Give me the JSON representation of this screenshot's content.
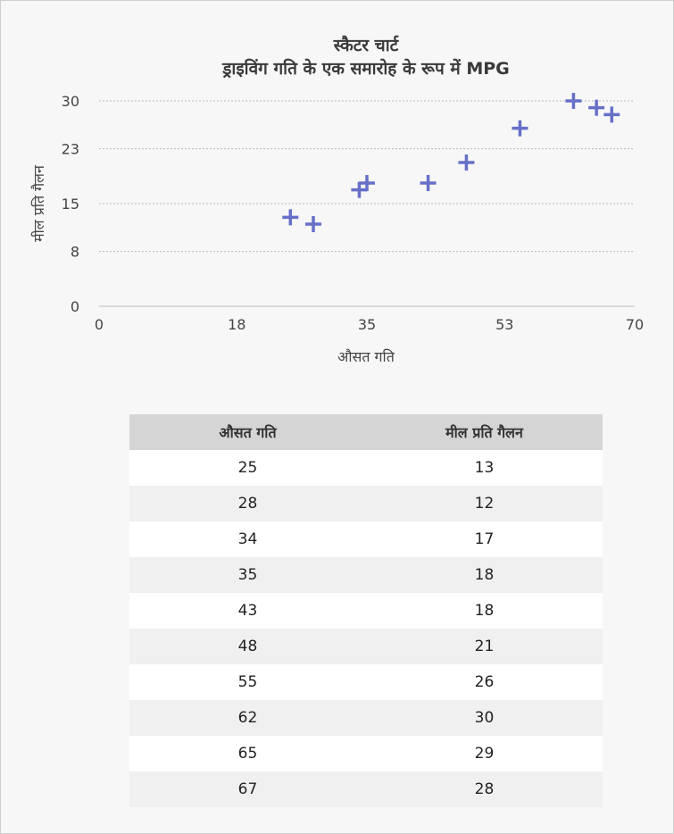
{
  "chart_data": {
    "type": "scatter",
    "title": "स्कैटर चार्ट",
    "subtitle": "ड्राइविंग गति के एक समारोह के रूप में MPG",
    "xlabel": "औसत गति",
    "ylabel": "मील प्रति गैलन",
    "xlim": [
      0,
      70
    ],
    "ylim": [
      0,
      30
    ],
    "x_ticks": [
      "0",
      "18",
      "35",
      "53",
      "70"
    ],
    "y_ticks": [
      "0",
      "8",
      "15",
      "23",
      "30"
    ],
    "grid": true,
    "marker_color": "#6670c9",
    "points": [
      {
        "x": 25,
        "y": 13
      },
      {
        "x": 28,
        "y": 12
      },
      {
        "x": 34,
        "y": 17
      },
      {
        "x": 35,
        "y": 18
      },
      {
        "x": 43,
        "y": 18
      },
      {
        "x": 48,
        "y": 21
      },
      {
        "x": 55,
        "y": 26
      },
      {
        "x": 62,
        "y": 30
      },
      {
        "x": 65,
        "y": 29
      },
      {
        "x": 67,
        "y": 28
      }
    ]
  },
  "table": {
    "headers": [
      "औसत गति",
      "मील प्रति गैलन"
    ],
    "rows": [
      [
        "25",
        "13"
      ],
      [
        "28",
        "12"
      ],
      [
        "34",
        "17"
      ],
      [
        "35",
        "18"
      ],
      [
        "43",
        "18"
      ],
      [
        "48",
        "21"
      ],
      [
        "55",
        "26"
      ],
      [
        "62",
        "30"
      ],
      [
        "65",
        "29"
      ],
      [
        "67",
        "28"
      ]
    ]
  }
}
